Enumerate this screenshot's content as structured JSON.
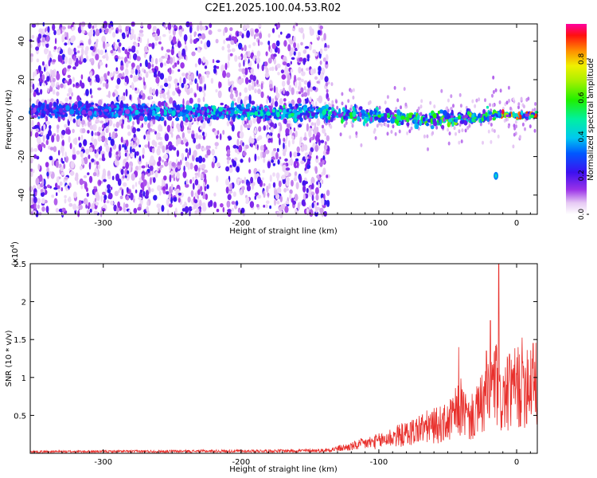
{
  "title": "C2E1.2025.100.04.53.R02",
  "colors": {
    "snr_line": "#e8302c",
    "axis": "#000000",
    "background": "#ffffff"
  },
  "chart_data": [
    {
      "type": "heatmap",
      "title": "C2E1.2025.100.04.53.R02",
      "xlabel": "Height of straight line (km)",
      "ylabel": "Frequency (Hz)",
      "xlim": [
        -353,
        15
      ],
      "ylim": [
        -50,
        49
      ],
      "xticks": [
        -300,
        -200,
        -100,
        0
      ],
      "yticks": [
        -40,
        -20,
        0,
        20,
        40
      ],
      "colorbar": {
        "label": "Normalized spectral amplitude",
        "range": [
          0,
          0.98
        ],
        "ticks": [
          0.0,
          0.2,
          0.4,
          0.6,
          0.8
        ],
        "colormap": "white-purple-blue-cyan-green-yellow-red-magenta"
      },
      "ridge": {
        "description_points": [
          [
            -353,
            4
          ],
          [
            -300,
            4
          ],
          [
            -250,
            3
          ],
          [
            -200,
            3
          ],
          [
            -150,
            3
          ],
          [
            -120,
            2
          ],
          [
            -100,
            1
          ],
          [
            -80,
            0
          ],
          [
            -60,
            -1
          ],
          [
            -40,
            0
          ],
          [
            -20,
            1
          ],
          [
            -10,
            2
          ],
          [
            0,
            1
          ],
          [
            15,
            2
          ]
        ],
        "peak_amplitude_region_km": [
          -12,
          12
        ],
        "noise_cutoff_km": -140
      },
      "isolated_feature": {
        "x": -15,
        "y": -30
      }
    },
    {
      "type": "line",
      "xlabel": "Height of straight line (km)",
      "ylabel": "SNR (10 * v/v)",
      "y_multiplier_label": "(x10",
      "y_multiplier_exp": "4",
      "xlim": [
        -353,
        15
      ],
      "ylim": [
        0,
        2.5
      ],
      "xticks": [
        -300,
        -200,
        -100,
        0
      ],
      "yticks": [
        0.5,
        1.0,
        1.5,
        2.0,
        2.5
      ],
      "ytick_labels": [
        "0.5",
        "1",
        "1.5",
        "2",
        "2.5"
      ],
      "series": [
        {
          "envelope_x": [
            -353,
            -200,
            -140,
            -120,
            -110,
            -100,
            -90,
            -80,
            -70,
            -60,
            -50,
            -45,
            -40,
            -35,
            -30,
            -25,
            -20,
            -18,
            -15,
            -12,
            -10,
            -5,
            0,
            5,
            10,
            15
          ],
          "envelope_y": [
            0.03,
            0.04,
            0.05,
            0.12,
            0.18,
            0.22,
            0.3,
            0.35,
            0.45,
            0.5,
            0.55,
            0.7,
            0.85,
            0.6,
            0.7,
            0.9,
            1.0,
            1.2,
            1.3,
            0.9,
            1.0,
            1.1,
            1.2,
            1.3,
            1.4,
            1.2
          ],
          "peaks": [
            [
              -42,
              1.4
            ],
            [
              -22,
              1.35
            ],
            [
              -19,
              1.75
            ],
            [
              -13,
              2.5
            ],
            [
              -5,
              1.3
            ],
            [
              12,
              1.45
            ]
          ]
        }
      ]
    }
  ]
}
